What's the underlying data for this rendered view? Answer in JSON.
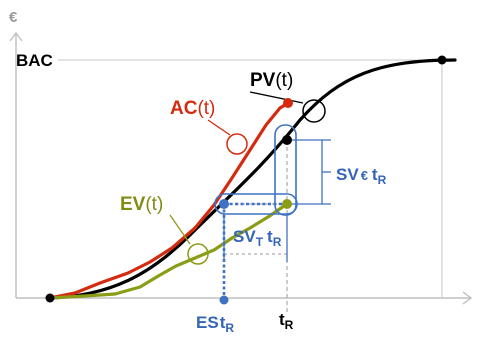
{
  "labels": {
    "y_unit": "€",
    "bac": "BAC",
    "pv_main": "PV",
    "pv_arg": "(t)",
    "ac_main": "AC",
    "ac_arg": "(t)",
    "ev_main": "EV",
    "ev_arg": "(t)",
    "sv_cost_main": "SV",
    "sv_cost_unit": "€",
    "sv_cost_t": "t",
    "sv_cost_sub": "R",
    "sv_time_main": "SV",
    "sv_time_unit": "T",
    "sv_time_t": "t",
    "sv_time_sub": "R",
    "es_main": "ES",
    "es_t": "t",
    "es_sub": "R",
    "tr_main": "t",
    "tr_sub": "R"
  },
  "colors": {
    "axis": "#bfbfbf",
    "pv": "#000000",
    "ac": "#d42b10",
    "ev": "#8b9c16",
    "sv": "#3f72c4",
    "label_ev": "#7f8d12",
    "label_sv": "#3365b8"
  }
}
